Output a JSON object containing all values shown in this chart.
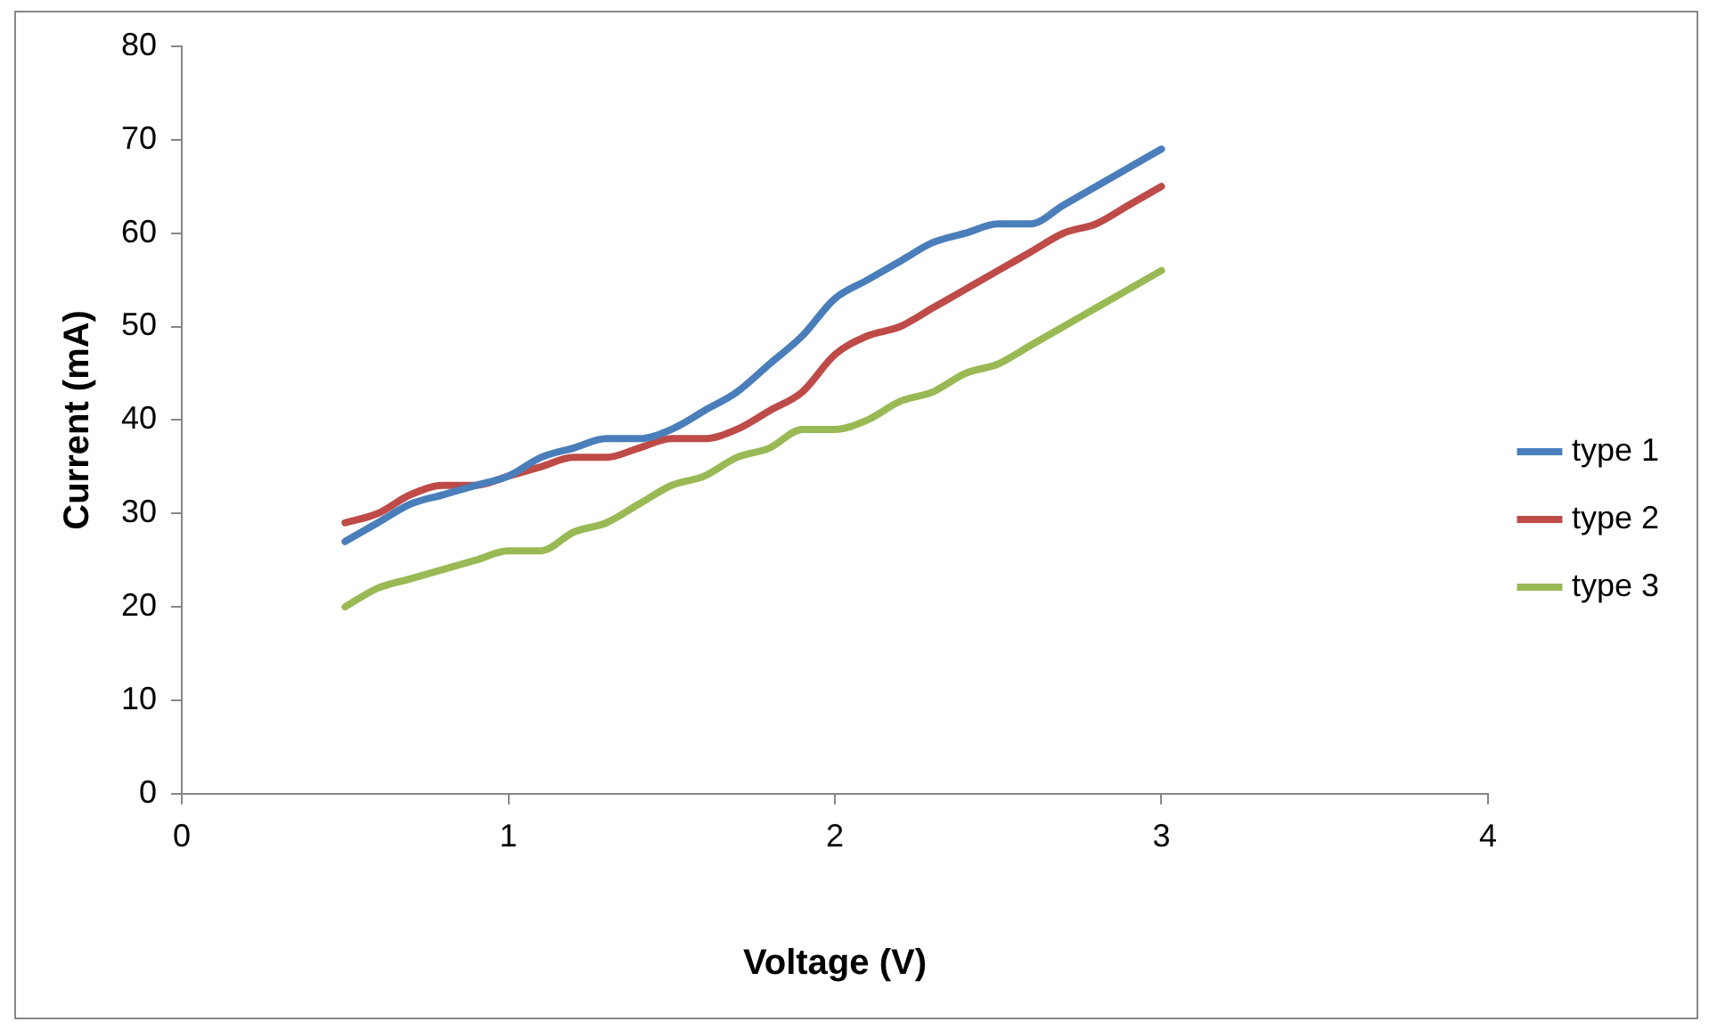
{
  "chart_data": {
    "type": "line",
    "xlabel": "Voltage (V)",
    "ylabel": "Current (mA)",
    "x": [
      0.5,
      0.6,
      0.7,
      0.8,
      0.9,
      1.0,
      1.1,
      1.2,
      1.3,
      1.4,
      1.5,
      1.6,
      1.7,
      1.8,
      1.9,
      2.0,
      2.1,
      2.2,
      2.3,
      2.4,
      2.5,
      2.6,
      2.7,
      2.8,
      2.9,
      3.0
    ],
    "series": [
      {
        "name": "type 1",
        "color": "#4a7ebb",
        "values": [
          27,
          29,
          31,
          32,
          33,
          34,
          36,
          37,
          38,
          38,
          39,
          41,
          43,
          46,
          49,
          53,
          55,
          57,
          59,
          60,
          61,
          61,
          63,
          65,
          67,
          69
        ]
      },
      {
        "name": "type 2",
        "color": "#be4b48",
        "values": [
          29,
          30,
          32,
          33,
          33,
          34,
          35,
          36,
          36,
          37,
          38,
          38,
          39,
          41,
          43,
          47,
          49,
          50,
          52,
          54,
          56,
          58,
          60,
          61,
          63,
          65
        ]
      },
      {
        "name": "type 3",
        "color": "#98b954",
        "values": [
          20,
          22,
          23,
          24,
          25,
          26,
          26,
          28,
          29,
          31,
          33,
          34,
          36,
          37,
          39,
          39,
          40,
          42,
          43,
          45,
          46,
          48,
          50,
          52,
          54,
          56
        ]
      }
    ],
    "xlim": [
      0,
      4
    ],
    "xticks": [
      0,
      1,
      2,
      3,
      4
    ],
    "ylim": [
      0,
      80
    ],
    "yticks": [
      0,
      10,
      20,
      30,
      40,
      50,
      60,
      70,
      80
    ],
    "grid": false,
    "legend": "right",
    "marker": "none",
    "line_style": "solid"
  }
}
